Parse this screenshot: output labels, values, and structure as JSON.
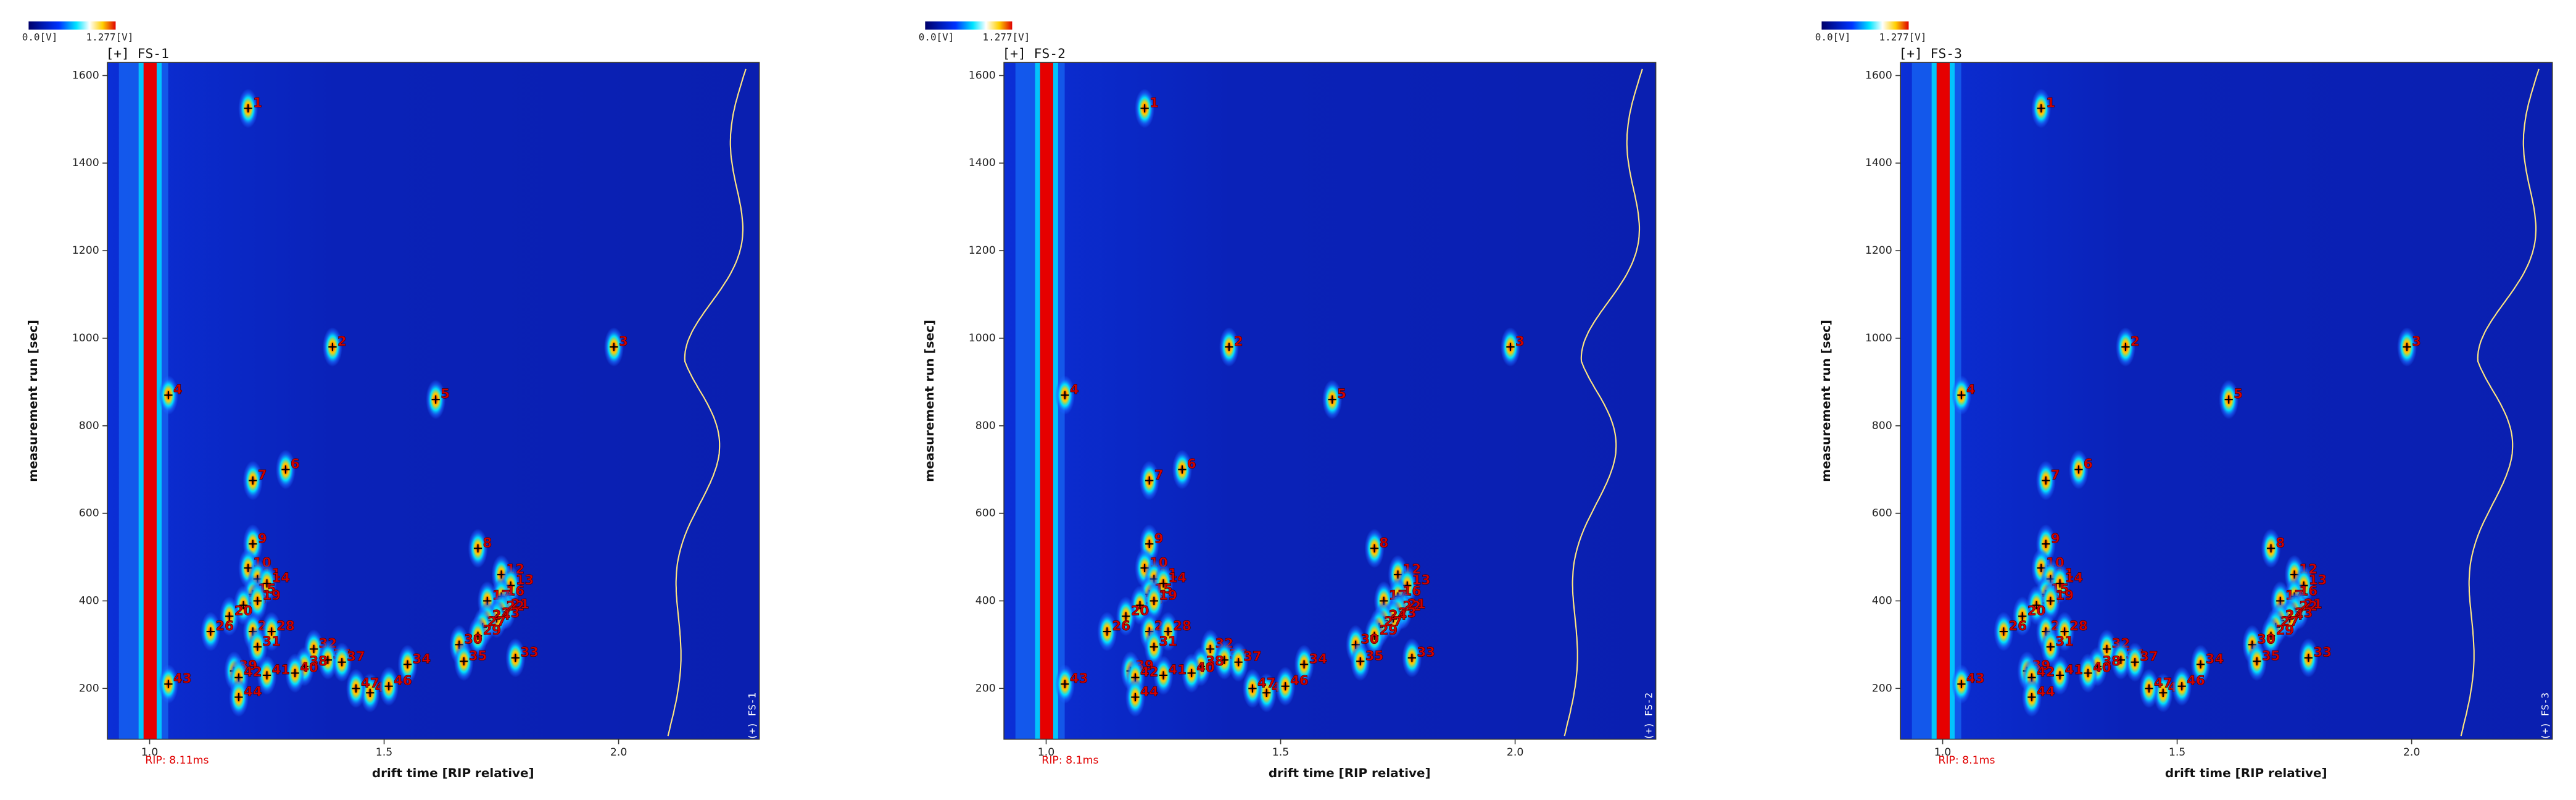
{
  "chart_data": [
    {
      "type": "heatmap",
      "title": "[+] FS-1",
      "side_label": "(+) FS-1",
      "note": "RIP: 8.11ms",
      "colorbar": [
        "0.0[V]",
        "1.277[V]"
      ],
      "xlabel": "drift time [RIP relative]",
      "ylabel": "measurement run [sec]",
      "xlim": [
        0.91,
        2.3
      ],
      "ylim": [
        84,
        1630
      ],
      "xticks": [
        {
          "value": 1.0,
          "label": "1.0"
        },
        1.5,
        {
          "value": 2.0,
          "label": "2.0"
        }
      ],
      "yticks": [
        200,
        400,
        600,
        800,
        1000,
        1200,
        1400,
        1600
      ],
      "peaks": [
        {
          "label": "1",
          "x": 1.21,
          "y": 1525
        },
        {
          "label": "2",
          "x": 1.39,
          "y": 980
        },
        {
          "label": "3",
          "x": 1.99,
          "y": 980
        },
        {
          "label": "4",
          "x": 1.04,
          "y": 870
        },
        {
          "label": "5",
          "x": 1.61,
          "y": 860
        },
        {
          "label": "6",
          "x": 1.29,
          "y": 700
        },
        {
          "label": "7",
          "x": 1.22,
          "y": 675
        },
        {
          "label": "8",
          "x": 1.7,
          "y": 520
        },
        {
          "label": "9",
          "x": 1.22,
          "y": 530
        },
        {
          "label": "10",
          "x": 1.21,
          "y": 475
        },
        {
          "label": "11",
          "x": 1.23,
          "y": 450
        },
        {
          "label": "12",
          "x": 1.75,
          "y": 460
        },
        {
          "label": "13",
          "x": 1.77,
          "y": 435
        },
        {
          "label": "14",
          "x": 1.25,
          "y": 440
        },
        {
          "label": "15",
          "x": 1.22,
          "y": 415
        },
        {
          "label": "16",
          "x": 1.75,
          "y": 410
        },
        {
          "label": "17",
          "x": 1.72,
          "y": 400
        },
        {
          "label": "18",
          "x": 1.2,
          "y": 390
        },
        {
          "label": "19",
          "x": 1.23,
          "y": 400
        },
        {
          "label": "20",
          "x": 1.17,
          "y": 365
        },
        {
          "label": "21",
          "x": 1.76,
          "y": 380
        },
        {
          "label": "22",
          "x": 1.75,
          "y": 375
        },
        {
          "label": "23",
          "x": 1.74,
          "y": 360
        },
        {
          "label": "24",
          "x": 1.72,
          "y": 355
        },
        {
          "label": "25",
          "x": 1.22,
          "y": 330
        },
        {
          "label": "26",
          "x": 1.13,
          "y": 330
        },
        {
          "label": "27",
          "x": 1.71,
          "y": 340
        },
        {
          "label": "28",
          "x": 1.26,
          "y": 330
        },
        {
          "label": "29",
          "x": 1.7,
          "y": 320
        },
        {
          "label": "30",
          "x": 1.66,
          "y": 300
        },
        {
          "label": "31",
          "x": 1.23,
          "y": 295
        },
        {
          "label": "32",
          "x": 1.35,
          "y": 290
        },
        {
          "label": "33",
          "x": 1.78,
          "y": 270
        },
        {
          "label": "34",
          "x": 1.55,
          "y": 255
        },
        {
          "label": "35",
          "x": 1.67,
          "y": 262
        },
        {
          "label": "36",
          "x": 1.38,
          "y": 265
        },
        {
          "label": "37",
          "x": 1.41,
          "y": 260
        },
        {
          "label": "38",
          "x": 1.33,
          "y": 250
        },
        {
          "label": "39",
          "x": 1.18,
          "y": 240
        },
        {
          "label": "40",
          "x": 1.31,
          "y": 235
        },
        {
          "label": "41",
          "x": 1.25,
          "y": 230
        },
        {
          "label": "42",
          "x": 1.19,
          "y": 225
        },
        {
          "label": "43",
          "x": 1.04,
          "y": 210
        },
        {
          "label": "44",
          "x": 1.19,
          "y": 180
        },
        {
          "label": "45",
          "x": 1.47,
          "y": 190
        },
        {
          "label": "46",
          "x": 1.51,
          "y": 205
        },
        {
          "label": "47",
          "x": 1.44,
          "y": 200
        }
      ]
    },
    {
      "type": "heatmap",
      "title": "[+] FS-2",
      "side_label": "(+) FS-2",
      "note": "RIP: 8.1ms",
      "colorbar": [
        "0.0[V]",
        "1.277[V]"
      ],
      "xlabel": "drift time [RIP relative]",
      "ylabel": "measurement run [sec]",
      "xlim": [
        0.91,
        2.3
      ],
      "ylim": [
        84,
        1630
      ],
      "xticks": [
        {
          "value": 1.0,
          "label": "1.0"
        },
        1.5,
        {
          "value": 2.0,
          "label": "2.0"
        }
      ],
      "yticks": [
        200,
        400,
        600,
        800,
        1000,
        1200,
        1400,
        1600
      ],
      "peaks": [
        {
          "label": "1",
          "x": 1.21,
          "y": 1525
        },
        {
          "label": "2",
          "x": 1.39,
          "y": 980
        },
        {
          "label": "3",
          "x": 1.99,
          "y": 980
        },
        {
          "label": "4",
          "x": 1.04,
          "y": 870
        },
        {
          "label": "5",
          "x": 1.61,
          "y": 860
        },
        {
          "label": "6",
          "x": 1.29,
          "y": 700
        },
        {
          "label": "7",
          "x": 1.22,
          "y": 675
        },
        {
          "label": "8",
          "x": 1.7,
          "y": 520
        },
        {
          "label": "9",
          "x": 1.22,
          "y": 530
        },
        {
          "label": "10",
          "x": 1.21,
          "y": 475
        },
        {
          "label": "11",
          "x": 1.23,
          "y": 450
        },
        {
          "label": "12",
          "x": 1.75,
          "y": 460
        },
        {
          "label": "13",
          "x": 1.77,
          "y": 435
        },
        {
          "label": "14",
          "x": 1.25,
          "y": 440
        },
        {
          "label": "15",
          "x": 1.22,
          "y": 415
        },
        {
          "label": "16",
          "x": 1.75,
          "y": 410
        },
        {
          "label": "17",
          "x": 1.72,
          "y": 400
        },
        {
          "label": "18",
          "x": 1.2,
          "y": 390
        },
        {
          "label": "19",
          "x": 1.23,
          "y": 400
        },
        {
          "label": "20",
          "x": 1.17,
          "y": 365
        },
        {
          "label": "21",
          "x": 1.76,
          "y": 380
        },
        {
          "label": "22",
          "x": 1.75,
          "y": 375
        },
        {
          "label": "23",
          "x": 1.74,
          "y": 360
        },
        {
          "label": "24",
          "x": 1.72,
          "y": 355
        },
        {
          "label": "25",
          "x": 1.22,
          "y": 330
        },
        {
          "label": "26",
          "x": 1.13,
          "y": 330
        },
        {
          "label": "27",
          "x": 1.71,
          "y": 340
        },
        {
          "label": "28",
          "x": 1.26,
          "y": 330
        },
        {
          "label": "29",
          "x": 1.7,
          "y": 320
        },
        {
          "label": "30",
          "x": 1.66,
          "y": 300
        },
        {
          "label": "31",
          "x": 1.23,
          "y": 295
        },
        {
          "label": "32",
          "x": 1.35,
          "y": 290
        },
        {
          "label": "33",
          "x": 1.78,
          "y": 270
        },
        {
          "label": "34",
          "x": 1.55,
          "y": 255
        },
        {
          "label": "35",
          "x": 1.67,
          "y": 262
        },
        {
          "label": "36",
          "x": 1.38,
          "y": 265
        },
        {
          "label": "37",
          "x": 1.41,
          "y": 260
        },
        {
          "label": "38",
          "x": 1.33,
          "y": 250
        },
        {
          "label": "39",
          "x": 1.18,
          "y": 240
        },
        {
          "label": "40",
          "x": 1.31,
          "y": 235
        },
        {
          "label": "41",
          "x": 1.25,
          "y": 230
        },
        {
          "label": "42",
          "x": 1.19,
          "y": 225
        },
        {
          "label": "43",
          "x": 1.04,
          "y": 210
        },
        {
          "label": "44",
          "x": 1.19,
          "y": 180
        },
        {
          "label": "45",
          "x": 1.47,
          "y": 190
        },
        {
          "label": "46",
          "x": 1.51,
          "y": 205
        },
        {
          "label": "47",
          "x": 1.44,
          "y": 200
        }
      ]
    },
    {
      "type": "heatmap",
      "title": "[+] FS-3",
      "side_label": "(+) FS-3",
      "note": "RIP: 8.1ms",
      "colorbar": [
        "0.0[V]",
        "1.277[V]"
      ],
      "xlabel": "drift time [RIP relative]",
      "ylabel": "measurement run [sec]",
      "xlim": [
        0.91,
        2.3
      ],
      "ylim": [
        84,
        1630
      ],
      "xticks": [
        {
          "value": 1.0,
          "label": "1.0"
        },
        1.5,
        {
          "value": 2.0,
          "label": "2.0"
        }
      ],
      "yticks": [
        200,
        400,
        600,
        800,
        1000,
        1200,
        1400,
        1600
      ],
      "peaks": [
        {
          "label": "1",
          "x": 1.21,
          "y": 1525
        },
        {
          "label": "2",
          "x": 1.39,
          "y": 980
        },
        {
          "label": "3",
          "x": 1.99,
          "y": 980
        },
        {
          "label": "4",
          "x": 1.04,
          "y": 870
        },
        {
          "label": "5",
          "x": 1.61,
          "y": 860
        },
        {
          "label": "6",
          "x": 1.29,
          "y": 700
        },
        {
          "label": "7",
          "x": 1.22,
          "y": 675
        },
        {
          "label": "8",
          "x": 1.7,
          "y": 520
        },
        {
          "label": "9",
          "x": 1.22,
          "y": 530
        },
        {
          "label": "10",
          "x": 1.21,
          "y": 475
        },
        {
          "label": "11",
          "x": 1.23,
          "y": 450
        },
        {
          "label": "12",
          "x": 1.75,
          "y": 460
        },
        {
          "label": "13",
          "x": 1.77,
          "y": 435
        },
        {
          "label": "14",
          "x": 1.25,
          "y": 440
        },
        {
          "label": "15",
          "x": 1.22,
          "y": 415
        },
        {
          "label": "16",
          "x": 1.75,
          "y": 410
        },
        {
          "label": "17",
          "x": 1.72,
          "y": 400
        },
        {
          "label": "18",
          "x": 1.2,
          "y": 390
        },
        {
          "label": "19",
          "x": 1.23,
          "y": 400
        },
        {
          "label": "20",
          "x": 1.17,
          "y": 365
        },
        {
          "label": "21",
          "x": 1.76,
          "y": 380
        },
        {
          "label": "22",
          "x": 1.75,
          "y": 375
        },
        {
          "label": "23",
          "x": 1.74,
          "y": 360
        },
        {
          "label": "24",
          "x": 1.72,
          "y": 355
        },
        {
          "label": "25",
          "x": 1.22,
          "y": 330
        },
        {
          "label": "26",
          "x": 1.13,
          "y": 330
        },
        {
          "label": "27",
          "x": 1.71,
          "y": 340
        },
        {
          "label": "28",
          "x": 1.26,
          "y": 330
        },
        {
          "label": "29",
          "x": 1.7,
          "y": 320
        },
        {
          "label": "30",
          "x": 1.66,
          "y": 300
        },
        {
          "label": "31",
          "x": 1.23,
          "y": 295
        },
        {
          "label": "32",
          "x": 1.35,
          "y": 290
        },
        {
          "label": "33",
          "x": 1.78,
          "y": 270
        },
        {
          "label": "34",
          "x": 1.55,
          "y": 255
        },
        {
          "label": "35",
          "x": 1.67,
          "y": 262
        },
        {
          "label": "36",
          "x": 1.38,
          "y": 265
        },
        {
          "label": "37",
          "x": 1.41,
          "y": 260
        },
        {
          "label": "38",
          "x": 1.33,
          "y": 250
        },
        {
          "label": "39",
          "x": 1.18,
          "y": 240
        },
        {
          "label": "40",
          "x": 1.31,
          "y": 235
        },
        {
          "label": "41",
          "x": 1.25,
          "y": 230
        },
        {
          "label": "42",
          "x": 1.19,
          "y": 225
        },
        {
          "label": "43",
          "x": 1.04,
          "y": 210
        },
        {
          "label": "44",
          "x": 1.19,
          "y": 180
        },
        {
          "label": "45",
          "x": 1.47,
          "y": 190
        },
        {
          "label": "46",
          "x": 1.51,
          "y": 205
        },
        {
          "label": "47",
          "x": 1.44,
          "y": 200
        }
      ]
    }
  ]
}
